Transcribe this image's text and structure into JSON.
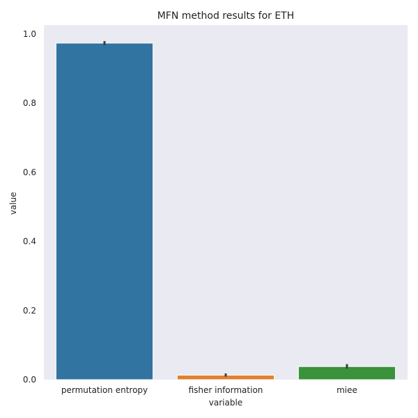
{
  "chart_data": {
    "type": "bar",
    "title": "MFN method results for ETH",
    "xlabel": "variable",
    "ylabel": "value",
    "categories": [
      "permutation entropy",
      "fisher information",
      "miee"
    ],
    "values": [
      0.974,
      0.013,
      0.038
    ],
    "error_bars": [
      [
        0.968,
        0.98
      ],
      [
        0.009,
        0.018
      ],
      [
        0.032,
        0.045
      ]
    ],
    "colors": [
      "#3274a1",
      "#e1812c",
      "#3a923a"
    ],
    "yticks": [
      "0.0",
      "0.2",
      "0.4",
      "0.6",
      "0.8",
      "1.0"
    ],
    "ylim": [
      0,
      1.0
    ],
    "grid": false,
    "background": "#eaeaf2"
  }
}
